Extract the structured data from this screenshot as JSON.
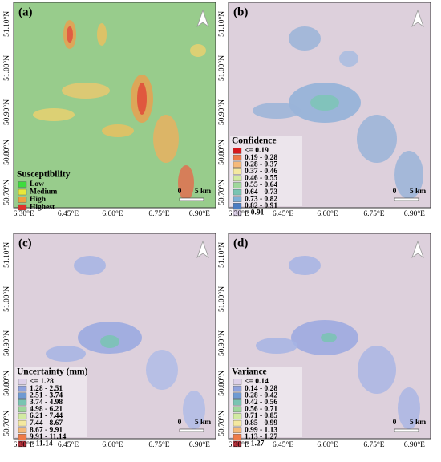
{
  "panels": [
    {
      "label": "(a)",
      "background": "#98cc8c",
      "legend": {
        "title": "Susceptibility",
        "items": [
          {
            "label": "Low",
            "color": "#3ddc3d"
          },
          {
            "label": "Medium",
            "color": "#e8e83a"
          },
          {
            "label": "High",
            "color": "#f0a040"
          },
          {
            "label": "Highest",
            "color": "#e0302a"
          }
        ]
      }
    },
    {
      "label": "(b)",
      "background": "#ddd0dc",
      "legend": {
        "title": "Confidence",
        "items": [
          {
            "label": "<= 0.19",
            "color": "#d7191c"
          },
          {
            "label": "0.19 - 0.28",
            "color": "#ee7a48"
          },
          {
            "label": "0.28 - 0.37",
            "color": "#f5b97a"
          },
          {
            "label": "0.37 - 0.46",
            "color": "#f4e8a0"
          },
          {
            "label": "0.46 - 0.55",
            "color": "#d2eaa2"
          },
          {
            "label": "0.55 - 0.64",
            "color": "#9fd79b"
          },
          {
            "label": "0.64 - 0.73",
            "color": "#79c4b2"
          },
          {
            "label": "0.73 - 0.82",
            "color": "#7fb0d6"
          },
          {
            "label": "0.82 - 0.91",
            "color": "#4c7ec2"
          },
          {
            "label": "> 0.91",
            "color": "#ddd0e8"
          }
        ]
      }
    },
    {
      "label": "(c)",
      "background": "#ddd0dc",
      "legend": {
        "title": "Uncertainty (mm)",
        "items": [
          {
            "label": "<= 1.28",
            "color": "#ddd0e8"
          },
          {
            "label": "1.28 - 2.51",
            "color": "#8fa2dd"
          },
          {
            "label": "2.51 - 3.74",
            "color": "#6f9ad2"
          },
          {
            "label": "3.74 - 4.98",
            "color": "#79c4b2"
          },
          {
            "label": "4.98 - 6.21",
            "color": "#9fd79b"
          },
          {
            "label": "6.21 - 7.44",
            "color": "#d2eaa2"
          },
          {
            "label": "7.44 - 8.67",
            "color": "#f4e8a0"
          },
          {
            "label": "8.67 - 9.91",
            "color": "#f5b97a"
          },
          {
            "label": "9.91 - 11.14",
            "color": "#ee7a48"
          },
          {
            "label": "> 11.14",
            "color": "#b5303a"
          }
        ]
      }
    },
    {
      "label": "(d)",
      "background": "#ddd0dc",
      "legend": {
        "title": "Variance",
        "items": [
          {
            "label": "<= 0.14",
            "color": "#ddd0e8"
          },
          {
            "label": "0.14 - 0.28",
            "color": "#8fa2dd"
          },
          {
            "label": "0.28 - 0.42",
            "color": "#6f9ad2"
          },
          {
            "label": "0.42 - 0.56",
            "color": "#79c4b2"
          },
          {
            "label": "0.56 - 0.71",
            "color": "#9fd79b"
          },
          {
            "label": "0.71 - 0.85",
            "color": "#d2eaa2"
          },
          {
            "label": "0.85 - 0.99",
            "color": "#f4e8a0"
          },
          {
            "label": "0.99 - 1.13",
            "color": "#f5b97a"
          },
          {
            "label": "1.13 - 1.27",
            "color": "#ee7a48"
          },
          {
            "label": "> 1.27",
            "color": "#b5303a"
          }
        ]
      }
    }
  ],
  "x_ticks": [
    "6.30°E",
    "6.45°E",
    "6.60°E",
    "6.75°E",
    "6.90°E"
  ],
  "y_ticks": [
    "51.10°N",
    "51.00°N",
    "50.90°N",
    "50.80°N",
    "50.70°N"
  ],
  "scale_bar": {
    "start": "0",
    "end": "5 km"
  }
}
